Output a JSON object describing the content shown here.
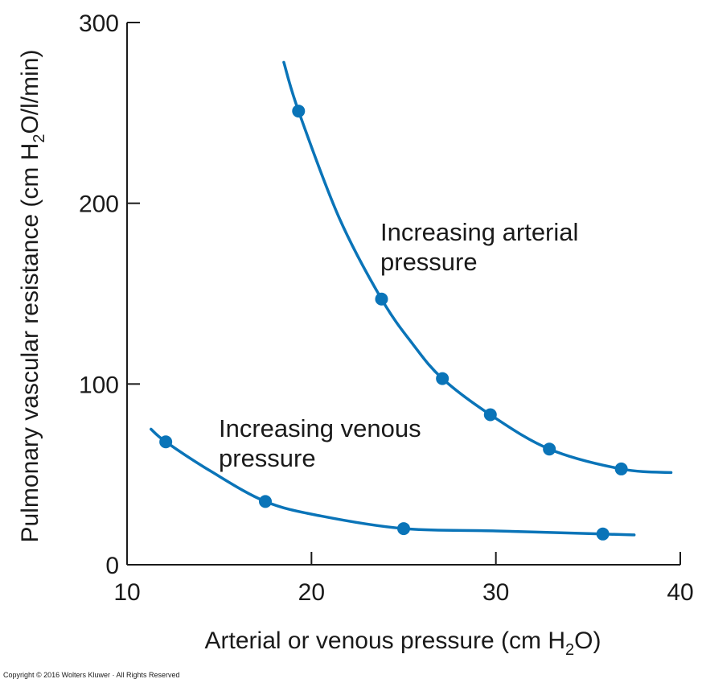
{
  "chart_data": {
    "type": "line",
    "title": "",
    "xlabel": {
      "main": "Arterial or venous pressure (cm H",
      "sub": "2",
      "end": "O)"
    },
    "ylabel": {
      "main": "Pulmonary vascular resistance (cm H",
      "sub": "2",
      "end": "O/l/min)"
    },
    "xlim": [
      10,
      40
    ],
    "ylim": [
      0,
      300
    ],
    "xticks": [
      10,
      20,
      30,
      40
    ],
    "yticks": [
      0,
      100,
      200,
      300
    ],
    "grid": false,
    "color": "#0a74b8",
    "series": [
      {
        "name": "Increasing arterial pressure",
        "annotation": [
          "Increasing arterial",
          "pressure"
        ],
        "points": [
          [
            19.3,
            251
          ],
          [
            23.8,
            147
          ],
          [
            27.1,
            103
          ],
          [
            29.7,
            83
          ],
          [
            32.9,
            64
          ],
          [
            36.8,
            53
          ]
        ],
        "curve": [
          [
            18.5,
            278
          ],
          [
            19.3,
            251
          ],
          [
            21.5,
            192
          ],
          [
            23.8,
            147
          ],
          [
            25.5,
            122
          ],
          [
            27.1,
            103
          ],
          [
            29.7,
            83
          ],
          [
            32.9,
            64
          ],
          [
            36.8,
            53
          ],
          [
            39.5,
            51
          ]
        ]
      },
      {
        "name": "Increasing venous pressure",
        "annotation": [
          "Increasing venous",
          "pressure"
        ],
        "points": [
          [
            12.1,
            68
          ],
          [
            17.5,
            35
          ],
          [
            25.0,
            20
          ],
          [
            35.8,
            17
          ]
        ],
        "curve": [
          [
            11.3,
            75
          ],
          [
            12.1,
            68
          ],
          [
            14.5,
            52
          ],
          [
            17.5,
            35
          ],
          [
            20.5,
            27
          ],
          [
            25.0,
            20
          ],
          [
            30.0,
            18.7
          ],
          [
            35.8,
            17
          ],
          [
            37.5,
            16.5
          ]
        ]
      }
    ]
  },
  "copyright": "Copyright © 2016 Wolters Kluwer · All Rights Reserved"
}
